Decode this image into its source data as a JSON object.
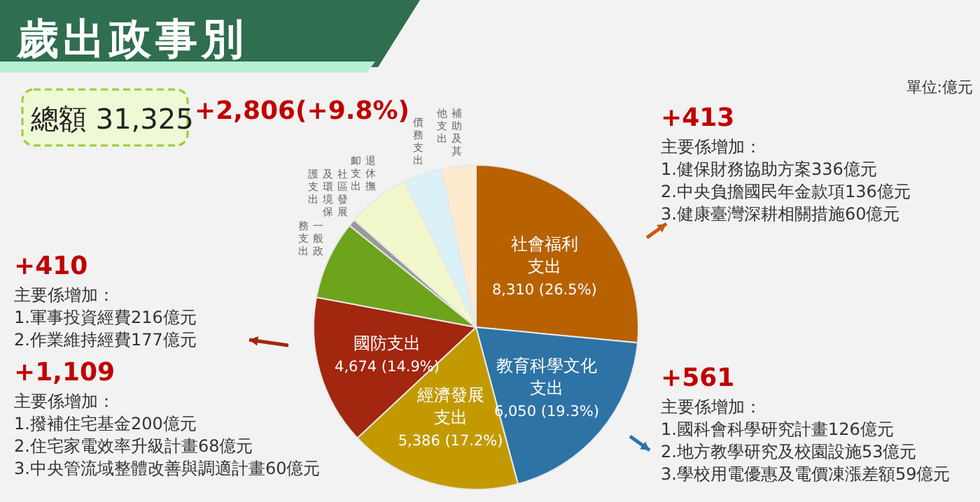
{
  "chart_data": {
    "type": "pie",
    "title": "歲出政事別",
    "categories": [
      "社會福利支出",
      "教育科學文化支出",
      "經濟發展支出",
      "國防支出",
      "一般政務支出",
      "社區發展及環境保護支出",
      "退休撫卹支出",
      "債務支出",
      "補助及其他支出"
    ],
    "values": [
      8310,
      6050,
      5386,
      4674,
      2450,
      230,
      1950,
      1200,
      1075
    ],
    "colors": [
      "#b76100",
      "#2d73a6",
      "#c29a00",
      "#a3260f",
      "#6ea31c",
      "#9a9a9a",
      "#f2f8cb",
      "#d9f1f7",
      "#fdeacf"
    ],
    "value_labels": [
      "8,310 (26.5%)",
      "6,050 (19.3%)",
      "5,386 (17.2%)",
      "4,674 (14.9%)",
      null,
      null,
      null,
      null,
      null
    ],
    "annotations": [
      "單位:億元",
      "總額 31,325",
      "+2,806(+9.8%)",
      "+413\n主要係增加：\n1.健保財務協助方案336億元\n2.中央負擔國民年金款項136億元\n3.健康臺灣深耕相關措施60億元",
      "+561\n主要係增加：\n1.國科會科學研究計畫126億元\n2.地方教學研究及校園設施53億元\n3.學校用電優惠及電價凍漲差額59億元",
      "+410\n主要係增加：\n1.軍事投資經費216億元\n2.作業維持經費177億元",
      "+1,109\n主要係增加：\n1.撥補住宅基金200億元\n2.住宅家電效率升級計畫68億元\n3.中央管流域整體改善與調適計畫60億元"
    ]
  }
}
